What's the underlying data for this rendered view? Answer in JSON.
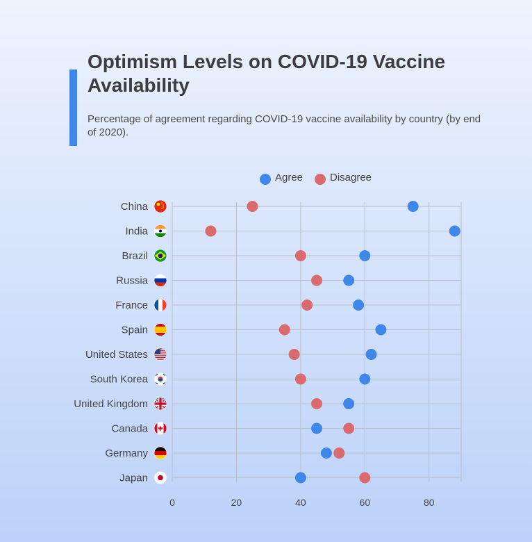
{
  "header": {
    "title": "Optimism Levels on COVID-19 Vaccine Availability",
    "subtitle": "Percentage of agreement regarding COVID-19 vaccine availability by country (by end of 2020)."
  },
  "colors": {
    "accent": "#3f87e8",
    "agree": "#3f87e8",
    "disagree": "#d96b6f",
    "grid": "#b9c0cc"
  },
  "chart_data": {
    "type": "scatter",
    "title": "Optimism Levels on COVID-19 Vaccine Availability",
    "subtitle": "Percentage of agreement regarding COVID-19 vaccine availability by country (by end of 2020).",
    "xlabel": "",
    "ylabel": "",
    "xlim": [
      0,
      90
    ],
    "xticks": [
      0,
      20,
      40,
      60,
      80
    ],
    "grid": true,
    "legend_position": "top-center",
    "categories": [
      "China",
      "India",
      "Brazil",
      "Russia",
      "France",
      "Spain",
      "United States",
      "South Korea",
      "United Kingdom",
      "Canada",
      "Germany",
      "Japan"
    ],
    "flags": [
      "china-flag-icon",
      "india-flag-icon",
      "brazil-flag-icon",
      "russia-flag-icon",
      "france-flag-icon",
      "spain-flag-icon",
      "usa-flag-icon",
      "south-korea-flag-icon",
      "uk-flag-icon",
      "canada-flag-icon",
      "germany-flag-icon",
      "japan-flag-icon"
    ],
    "series": [
      {
        "name": "Agree",
        "values": [
          75,
          88,
          60,
          55,
          58,
          65,
          62,
          60,
          55,
          45,
          48,
          40
        ]
      },
      {
        "name": "Disagree",
        "values": [
          25,
          12,
          40,
          45,
          42,
          35,
          38,
          40,
          45,
          55,
          52,
          60
        ]
      }
    ]
  }
}
